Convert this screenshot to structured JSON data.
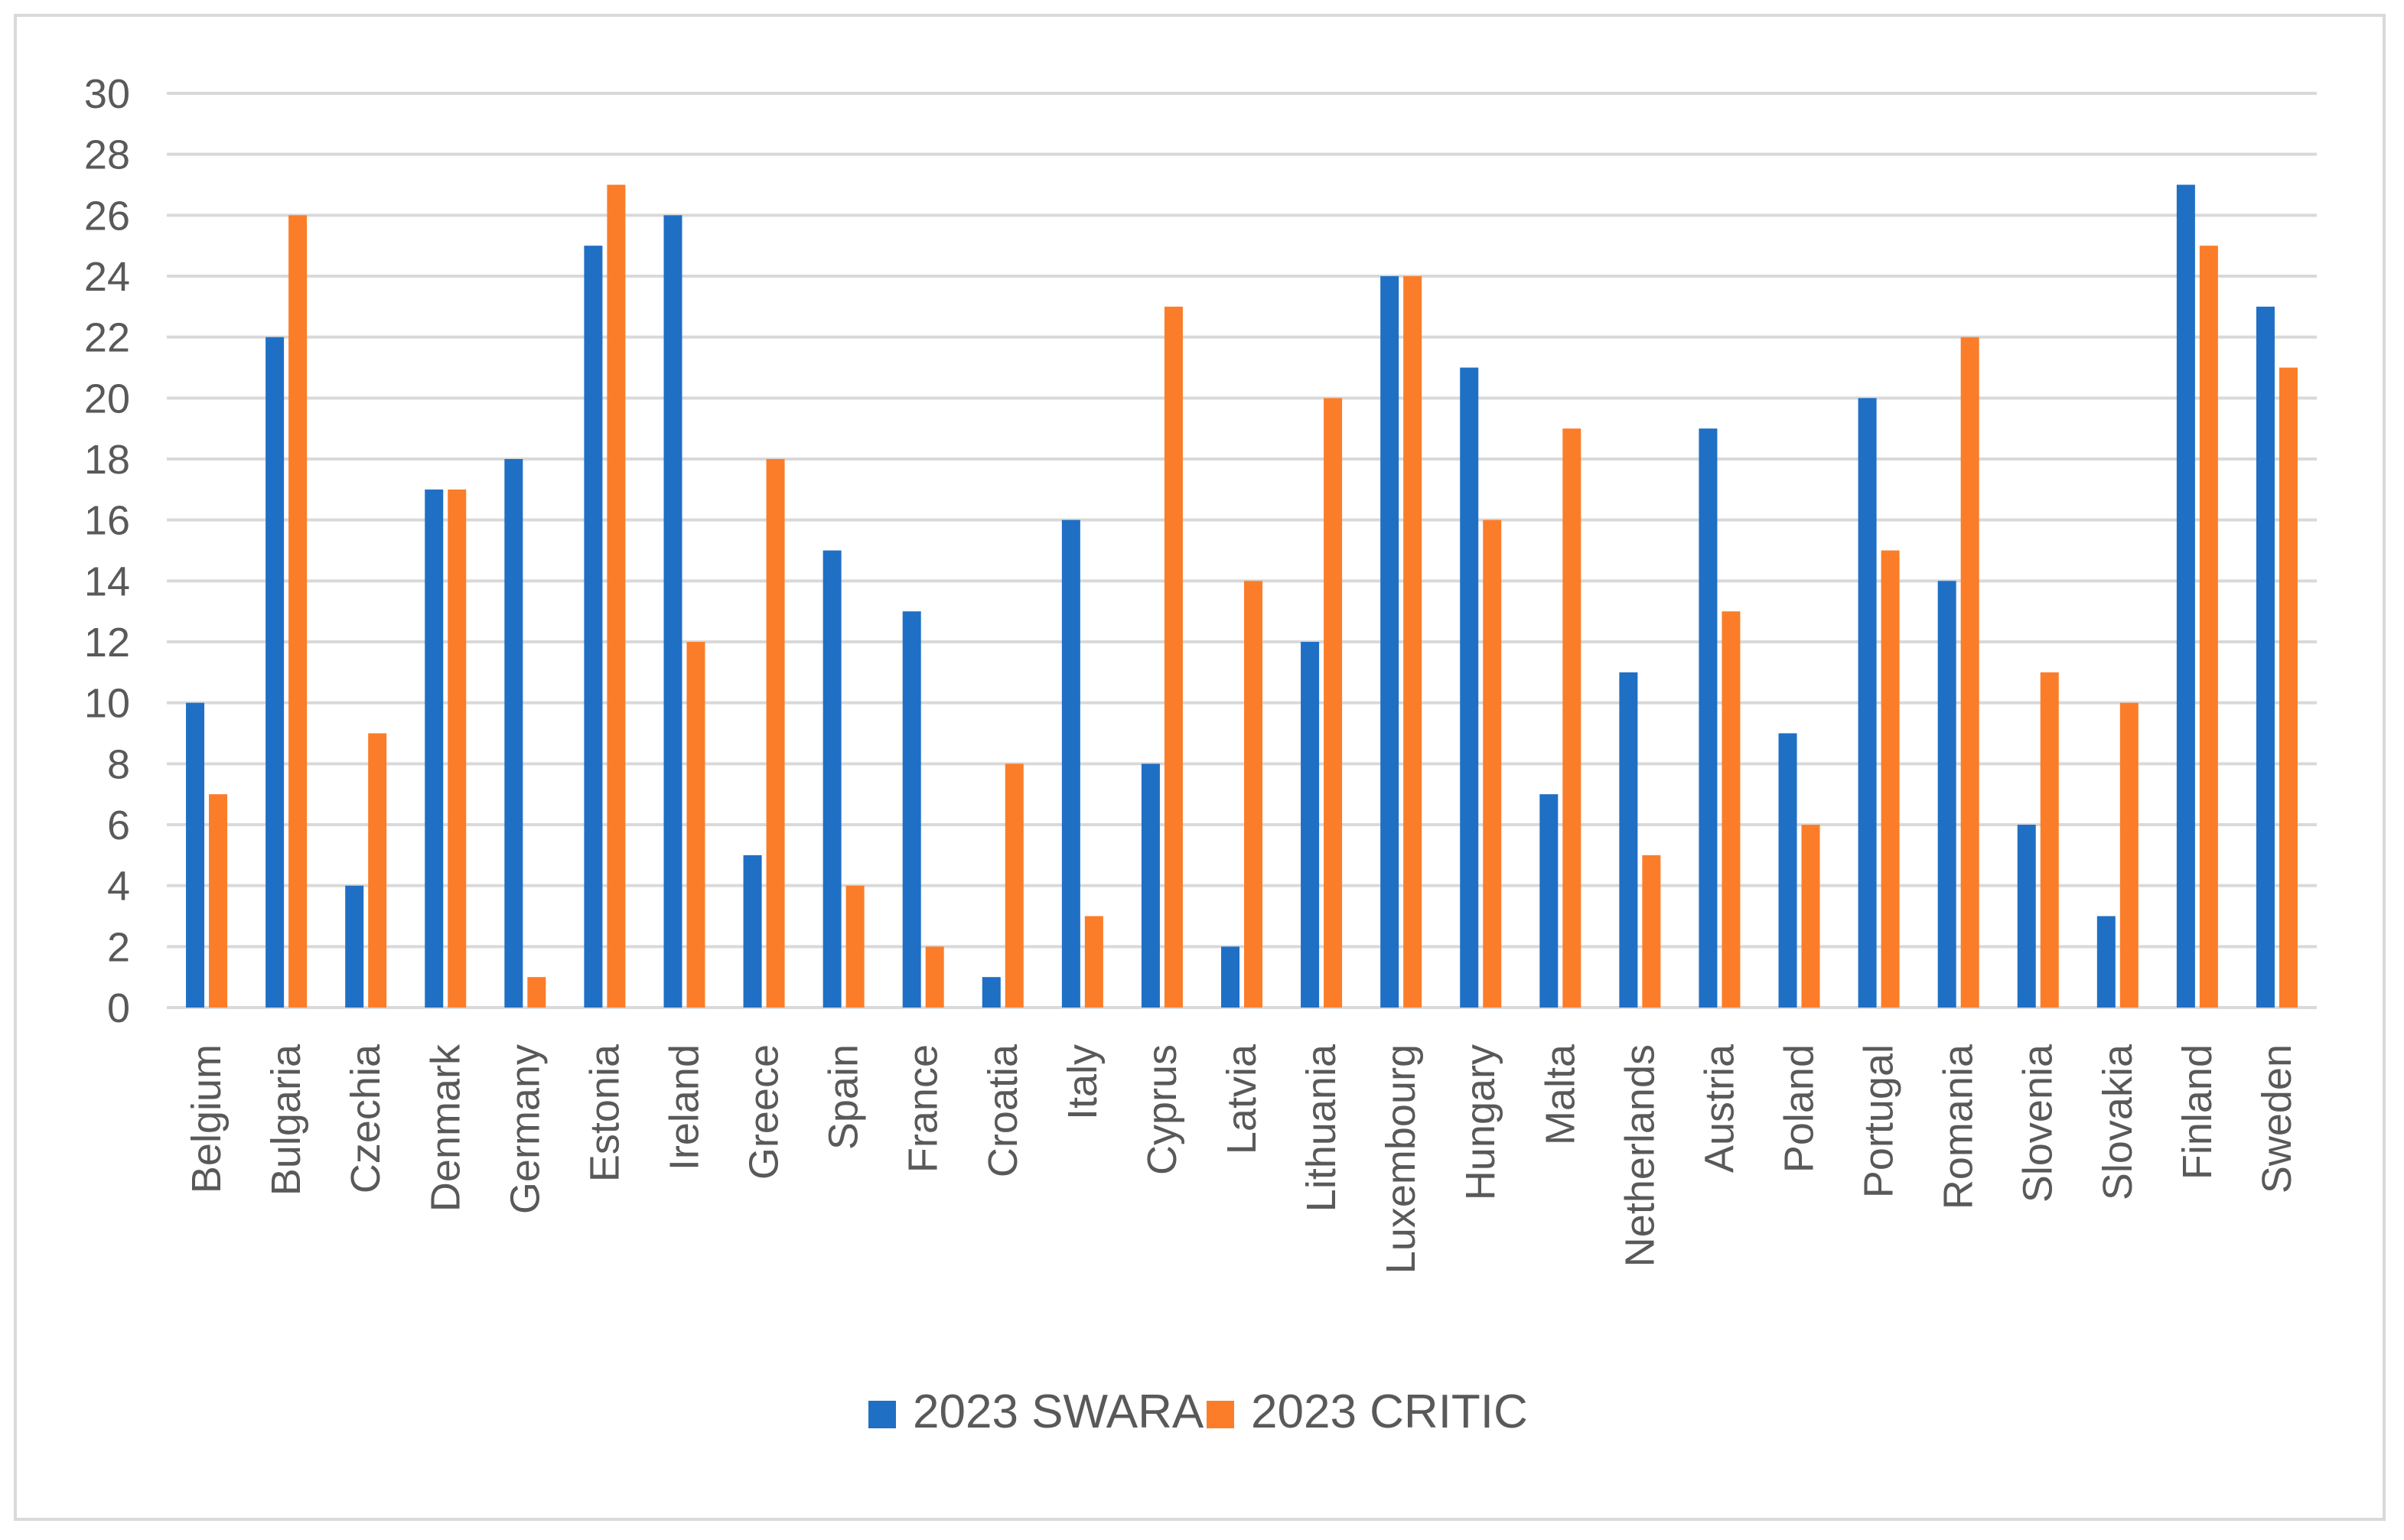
{
  "chart_data": {
    "type": "bar",
    "title": "",
    "xlabel": "",
    "ylabel": "",
    "ylim": [
      0,
      30
    ],
    "yticks": [
      0,
      2,
      4,
      6,
      8,
      10,
      12,
      14,
      16,
      18,
      20,
      22,
      24,
      26,
      28,
      30
    ],
    "grid": true,
    "legend_position": "bottom",
    "categories": [
      "Belgium",
      "Bulgaria",
      "Czechia",
      "Denmark",
      "Germany",
      "Estonia",
      "Ireland",
      "Greece",
      "Spain",
      "France",
      "Croatia",
      "Italy",
      "Cyprus",
      "Latvia",
      "Lithuania",
      "Luxembourg",
      "Hungary",
      "Malta",
      "Netherlands",
      "Austria",
      "Poland",
      "Portugal",
      "Romania",
      "Slovenia",
      "Slovakia",
      "Finland",
      "Sweden"
    ],
    "series": [
      {
        "name": "2023 SWARA",
        "color": "#1f6fc5",
        "values": [
          10,
          22,
          4,
          17,
          18,
          25,
          26,
          5,
          15,
          13,
          1,
          16,
          8,
          2,
          12,
          24,
          21,
          7,
          11,
          19,
          9,
          20,
          14,
          6,
          3,
          27,
          23
        ]
      },
      {
        "name": "2023 CRITIC",
        "color": "#fb7d29",
        "values": [
          7,
          26,
          9,
          17,
          1,
          27,
          12,
          18,
          4,
          2,
          8,
          3,
          23,
          14,
          20,
          24,
          16,
          19,
          5,
          13,
          6,
          15,
          22,
          11,
          10,
          25,
          21
        ]
      }
    ],
    "gridline_color": "#d9d9d9",
    "text_color": "#595959"
  }
}
